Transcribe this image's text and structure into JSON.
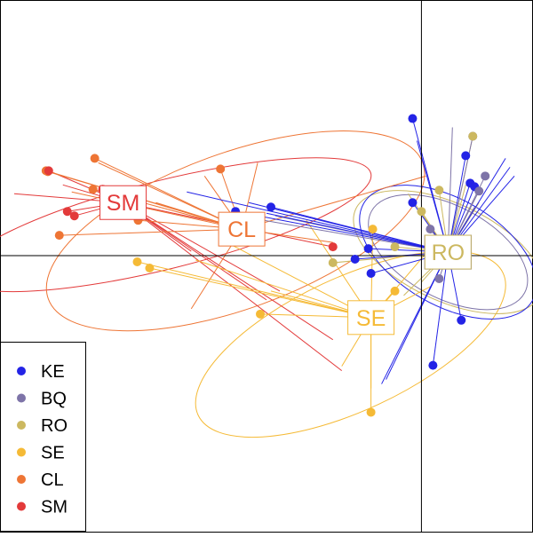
{
  "chart_data": {
    "type": "scatter",
    "title": "",
    "xlabel": "",
    "ylabel": "",
    "xlim": [
      -4.75,
      1.25
    ],
    "ylim": [
      -3.12,
      2.88
    ],
    "axes_cross": [
      0,
      0
    ],
    "legend_position": "bottom-left",
    "series": [
      {
        "name": "KE",
        "color": "#2323e6",
        "centroid": [
          0.3,
          0.04
        ],
        "ellipse": {
          "cx": 0.3,
          "cy": 0.04,
          "rx": 0.6,
          "ry": 1.1,
          "angle": -60
        },
        "points": [
          [
            -1.7,
            0.55
          ],
          [
            -2.1,
            0.5
          ],
          [
            -0.6,
            0.08
          ],
          [
            -0.75,
            -0.04
          ],
          [
            -0.57,
            -0.2
          ],
          [
            -0.1,
            1.55
          ],
          [
            0.5,
            1.13
          ],
          [
            0.45,
            -0.73
          ],
          [
            0.13,
            -1.24
          ],
          [
            0.55,
            0.82
          ],
          [
            0.6,
            0.78
          ],
          [
            -0.1,
            0.6
          ]
        ],
        "spokes": [
          [
            -0.05,
            1.3
          ],
          [
            0.95,
            1.1
          ],
          [
            1.0,
            1.0
          ],
          [
            1.05,
            0.9
          ],
          [
            -0.4,
            -1.4
          ],
          [
            -0.45,
            -1.45
          ],
          [
            -1.95,
            0.6
          ],
          [
            -1.75,
            0.48
          ],
          [
            -2.65,
            0.72
          ]
        ]
      },
      {
        "name": "BQ",
        "color": "#7e74a8",
        "centroid": [
          0.3,
          0.04
        ],
        "ellipse": {
          "cx": 0.3,
          "cy": 0.04,
          "rx": 0.52,
          "ry": 0.98,
          "angle": -62
        },
        "points": [
          [
            0.58,
            1.35
          ],
          [
            0.72,
            0.9
          ],
          [
            0.65,
            0.73
          ],
          [
            0.2,
            -0.26
          ],
          [
            0.1,
            0.3
          ],
          [
            -1.9,
            0.42
          ]
        ],
        "spokes": [
          [
            0.35,
            1.45
          ],
          [
            0.6,
            0.55
          ],
          [
            -1.65,
            0.45
          ]
        ]
      },
      {
        "name": "RO",
        "color": "#ccb860",
        "centroid": [
          0.3,
          0.04
        ],
        "ellipse": {
          "cx": 0.3,
          "cy": 0.04,
          "rx": 0.55,
          "ry": 1.15,
          "angle": -65
        },
        "points": [
          [
            0.2,
            0.74
          ],
          [
            0.58,
            1.35
          ],
          [
            -0.3,
            0.1
          ],
          [
            -1.0,
            -0.08
          ],
          [
            0.0,
            0.5
          ]
        ],
        "spokes": [
          [
            0.5,
            0.8
          ],
          [
            0.0,
            -0.3
          ],
          [
            -0.2,
            -0.45
          ],
          [
            -0.15,
            0.7
          ],
          [
            0.65,
            0.6
          ]
        ]
      },
      {
        "name": "SE",
        "color": "#f5ba36",
        "centroid": [
          -0.57,
          -0.7
        ],
        "ellipse": {
          "cx": -0.8,
          "cy": -1.0,
          "rx": 1.9,
          "ry": 0.75,
          "angle": -25
        },
        "points": [
          [
            -3.21,
            -0.07
          ],
          [
            -3.07,
            -0.14
          ],
          [
            -1.82,
            -0.66
          ],
          [
            -0.57,
            -1.77
          ],
          [
            -0.55,
            0.3
          ],
          [
            -0.3,
            -0.4
          ]
        ],
        "spokes": [
          [
            -0.57,
            -1.5
          ],
          [
            -1.3,
            0.4
          ],
          [
            -2.2,
            0.15
          ],
          [
            0.2,
            0.2
          ],
          [
            0.1,
            -0.35
          ],
          [
            -0.9,
            -1.25
          ],
          [
            -1.7,
            -0.4
          ],
          [
            -2.55,
            -0.05
          ]
        ]
      },
      {
        "name": "CL",
        "color": "#ee7535",
        "centroid": [
          -2.03,
          0.3
        ],
        "ellipse": {
          "cx": -2.1,
          "cy": 0.28,
          "rx": 2.25,
          "ry": 0.88,
          "angle": -20
        },
        "points": [
          [
            -3.69,
            1.1
          ],
          [
            -4.24,
            0.96
          ],
          [
            -4.22,
            0.95
          ],
          [
            -2.27,
            0.98
          ],
          [
            -3.2,
            0.4
          ],
          [
            -3.71,
            0.75
          ],
          [
            -4.09,
            0.23
          ]
        ],
        "spokes": [
          [
            -3.65,
            1.05
          ],
          [
            -3.0,
            0.6
          ],
          [
            -3.95,
            0.72
          ],
          [
            -2.45,
            0.9
          ],
          [
            -1.0,
            0.15
          ],
          [
            0.05,
            0.9
          ],
          [
            -1.85,
            1.05
          ],
          [
            -2.6,
            -0.6
          ]
        ]
      },
      {
        "name": "SM",
        "color": "#e33a3a",
        "centroid": [
          -3.37,
          0.6
        ],
        "ellipse": {
          "cx": -2.9,
          "cy": 0.35,
          "rx": 2.4,
          "ry": 0.5,
          "angle": -14
        },
        "points": [
          [
            -4.21,
            0.96
          ],
          [
            -3.92,
            0.45
          ],
          [
            -3.6,
            0.75
          ],
          [
            -4.0,
            0.5
          ],
          [
            -1.0,
            0.1
          ]
        ],
        "spokes": [
          [
            -4.05,
            0.8
          ],
          [
            -4.6,
            0.7
          ],
          [
            -1.6,
            -0.4
          ],
          [
            -2.6,
            0.05
          ],
          [
            -1.75,
            -0.5
          ],
          [
            -1.0,
            -0.95
          ],
          [
            -0.9,
            -1.3
          ]
        ]
      }
    ]
  }
}
